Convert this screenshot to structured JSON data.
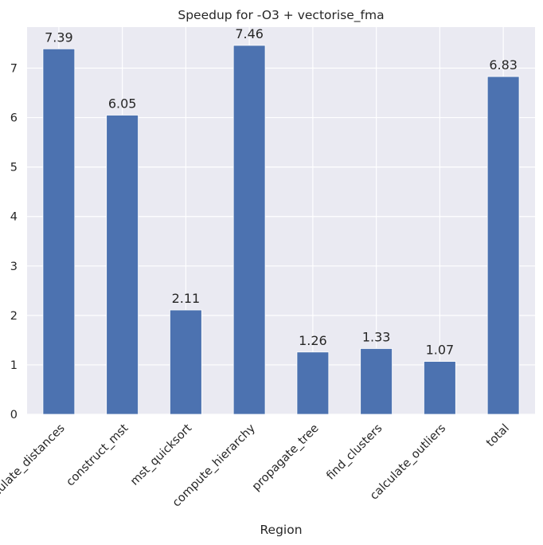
{
  "chart_data": {
    "type": "bar",
    "title": "Speedup for -O3 + vectorise_fma",
    "xlabel": "Region",
    "ylabel": "",
    "ylim": [
      0,
      7.83
    ],
    "yticks": [
      0,
      1,
      2,
      3,
      4,
      5,
      6,
      7
    ],
    "grid": true,
    "legend": "none",
    "categories": [
      "calculate_distances",
      "construct_mst",
      "mst_quicksort",
      "compute_hierarchy",
      "propagate_tree",
      "find_clusters",
      "calculate_outliers",
      "total"
    ],
    "values": [
      7.39,
      6.05,
      2.11,
      7.46,
      1.26,
      1.33,
      1.07,
      6.83
    ],
    "value_labels": [
      "7.39",
      "6.05",
      "2.11",
      "7.46",
      "1.26",
      "1.33",
      "1.07",
      "6.83"
    ],
    "colors": {
      "bar": "#4c72b0",
      "background": "#eaeaf2",
      "grid": "#ffffff"
    }
  }
}
